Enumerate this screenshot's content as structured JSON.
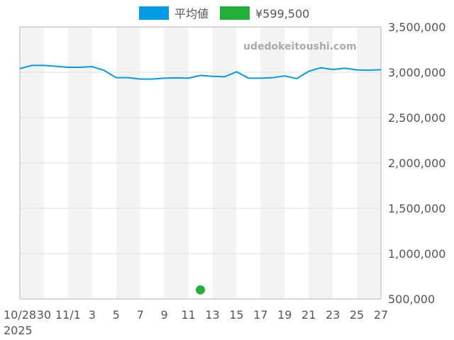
{
  "watermark": "udedokeitoushi.com",
  "chart_data": {
    "type": "line",
    "x_labels": [
      "10/28",
      "30",
      "11/1",
      "3",
      "5",
      "7",
      "9",
      "11",
      "13",
      "15",
      "17",
      "19",
      "21",
      "23",
      "25",
      "27"
    ],
    "year_label": "2025",
    "yticks": [
      "3,500,000",
      "3,000,000",
      "2,500,000",
      "2,000,000",
      "1,500,000",
      "1,000,000",
      "500,000"
    ],
    "ylim": [
      500000,
      3500000
    ],
    "grid": true,
    "legend_position": "top",
    "series": [
      {
        "name": "平均値",
        "type": "line",
        "color": "#039be5",
        "x": [
          "10/28",
          "10/29",
          "10/30",
          "10/31",
          "11/1",
          "11/2",
          "11/3",
          "11/4",
          "11/5",
          "11/6",
          "11/7",
          "11/8",
          "11/9",
          "11/10",
          "11/11",
          "11/12",
          "11/13",
          "11/14",
          "11/15",
          "11/16",
          "11/17",
          "11/18",
          "11/19",
          "11/20",
          "11/21",
          "11/22",
          "11/23",
          "11/24",
          "11/25",
          "11/26",
          "11/27"
        ],
        "values": [
          3040000,
          3075000,
          3075000,
          3065000,
          3055000,
          3055000,
          3062000,
          3020000,
          2940000,
          2940000,
          2925000,
          2925000,
          2935000,
          2938000,
          2935000,
          2965000,
          2955000,
          2950000,
          3005000,
          2935000,
          2935000,
          2940000,
          2960000,
          2930000,
          3010000,
          3050000,
          3030000,
          3045000,
          3025000,
          3022000,
          3028000
        ]
      },
      {
        "name": "¥599,500",
        "type": "scatter",
        "color": "#22b03a",
        "x": [
          "11/12"
        ],
        "values": [
          599500
        ]
      }
    ]
  }
}
